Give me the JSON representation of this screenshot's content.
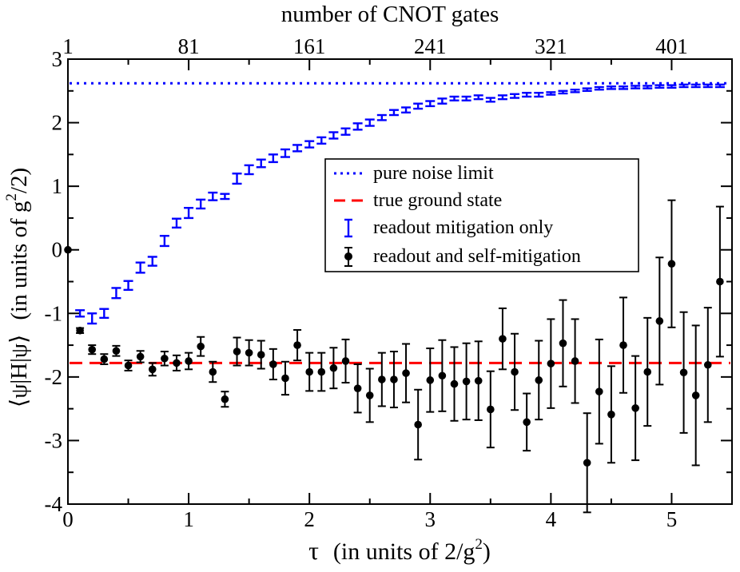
{
  "chart_data": {
    "type": "scatter",
    "title": "",
    "xlabel": "τ   (in units of 2/g²)",
    "xlabel_parts": {
      "tau": "τ",
      "prefix": "(in units of 2/g",
      "sup": "2",
      "suffix": ")"
    },
    "ylabel": "⟨ψ|H|ψ⟩   (in units of g²/2)",
    "ylabel_parts": {
      "bra": "⟨ψ|H|ψ⟩",
      "prefix": "(in units of g",
      "sup": "2",
      "suffix": "/2)"
    },
    "top_axis_label": "number of CNOT gates",
    "xlim": [
      0,
      5.5
    ],
    "ylim": [
      -4,
      3
    ],
    "x_ticks": [
      0,
      1,
      2,
      3,
      4,
      5
    ],
    "y_ticks": [
      -4,
      -3,
      -2,
      -1,
      0,
      1,
      2,
      3
    ],
    "top_ticks": [
      {
        "label": "1",
        "x": 0
      },
      {
        "label": "81",
        "x": 1
      },
      {
        "label": "161",
        "x": 2
      },
      {
        "label": "241",
        "x": 3
      },
      {
        "label": "321",
        "x": 4
      },
      {
        "label": "401",
        "x": 5
      }
    ],
    "legend_position": "center-right",
    "legend": [
      {
        "label": "pure noise limit",
        "style": "dotted-line",
        "color": "#0000ff"
      },
      {
        "label": "true ground state",
        "style": "dashed-line",
        "color": "#ff0000"
      },
      {
        "label": "readout mitigation only",
        "style": "errorbar",
        "color": "#0000ff"
      },
      {
        "label": "readout and self-mitigation",
        "style": "point-errorbar",
        "color": "#000000"
      }
    ],
    "reference_lines": [
      {
        "name": "pure noise limit",
        "y": 2.62,
        "color": "#0000ff",
        "style": "dotted"
      },
      {
        "name": "true ground state",
        "y": -1.78,
        "color": "#ff0000",
        "style": "dashed"
      }
    ],
    "series": [
      {
        "name": "readout mitigation only",
        "color": "#0000ff",
        "marker": "errorbar",
        "x": [
          0.1,
          0.2,
          0.3,
          0.4,
          0.5,
          0.6,
          0.7,
          0.8,
          0.9,
          1.0,
          1.1,
          1.2,
          1.3,
          1.4,
          1.5,
          1.6,
          1.7,
          1.8,
          1.9,
          2.0,
          2.1,
          2.2,
          2.3,
          2.4,
          2.5,
          2.6,
          2.7,
          2.8,
          2.9,
          3.0,
          3.1,
          3.2,
          3.3,
          3.4,
          3.5,
          3.6,
          3.7,
          3.8,
          3.9,
          4.0,
          4.1,
          4.2,
          4.3,
          4.4,
          4.5,
          4.6,
          4.7,
          4.8,
          4.9,
          5.0,
          5.1,
          5.2,
          5.3,
          5.4
        ],
        "y": [
          -1.0,
          -1.08,
          -1.0,
          -0.68,
          -0.56,
          -0.28,
          -0.18,
          0.14,
          0.42,
          0.58,
          0.72,
          0.84,
          0.84,
          1.12,
          1.26,
          1.36,
          1.44,
          1.52,
          1.6,
          1.66,
          1.72,
          1.8,
          1.86,
          1.94,
          2.0,
          2.08,
          2.16,
          2.2,
          2.26,
          2.3,
          2.34,
          2.38,
          2.38,
          2.4,
          2.36,
          2.4,
          2.42,
          2.44,
          2.44,
          2.46,
          2.48,
          2.5,
          2.52,
          2.54,
          2.55,
          2.55,
          2.56,
          2.56,
          2.57,
          2.57,
          2.58,
          2.58,
          2.58,
          2.58
        ],
        "err": [
          0.05,
          0.08,
          0.07,
          0.08,
          0.07,
          0.08,
          0.07,
          0.08,
          0.07,
          0.08,
          0.07,
          0.06,
          0.04,
          0.08,
          0.07,
          0.06,
          0.06,
          0.06,
          0.05,
          0.05,
          0.05,
          0.05,
          0.05,
          0.05,
          0.05,
          0.04,
          0.04,
          0.04,
          0.04,
          0.04,
          0.04,
          0.03,
          0.03,
          0.03,
          0.03,
          0.03,
          0.03,
          0.03,
          0.03,
          0.02,
          0.02,
          0.02,
          0.02,
          0.02,
          0.02,
          0.02,
          0.02,
          0.02,
          0.02,
          0.02,
          0.02,
          0.02,
          0.02,
          0.02
        ]
      },
      {
        "name": "readout and self-mitigation",
        "color": "#000000",
        "marker": "circle",
        "x": [
          0.0,
          0.1,
          0.2,
          0.3,
          0.4,
          0.5,
          0.6,
          0.7,
          0.8,
          0.9,
          1.0,
          1.1,
          1.2,
          1.3,
          1.4,
          1.5,
          1.6,
          1.7,
          1.8,
          1.9,
          2.0,
          2.1,
          2.2,
          2.3,
          2.4,
          2.5,
          2.6,
          2.7,
          2.8,
          2.9,
          3.0,
          3.1,
          3.2,
          3.3,
          3.4,
          3.5,
          3.6,
          3.7,
          3.8,
          3.9,
          4.0,
          4.1,
          4.2,
          4.3,
          4.4,
          4.5,
          4.6,
          4.7,
          4.8,
          4.9,
          5.0,
          5.1,
          5.2,
          5.3,
          5.4
        ],
        "y": [
          0.0,
          -1.27,
          -1.57,
          -1.72,
          -1.59,
          -1.82,
          -1.68,
          -1.88,
          -1.71,
          -1.78,
          -1.75,
          -1.52,
          -1.92,
          -2.35,
          -1.6,
          -1.62,
          -1.65,
          -1.8,
          -2.02,
          -1.5,
          -1.92,
          -1.92,
          -1.86,
          -1.75,
          -2.18,
          -2.29,
          -2.04,
          -2.04,
          -1.94,
          -2.75,
          -2.05,
          -1.98,
          -2.11,
          -2.07,
          -2.06,
          -2.51,
          -1.4,
          -1.92,
          -2.71,
          -2.05,
          -1.79,
          -1.47,
          -1.75,
          -3.35,
          -2.23,
          -2.59,
          -1.5,
          -2.49,
          -1.92,
          -1.12,
          -0.22,
          -1.93,
          -2.29,
          -1.81,
          -0.5
        ],
        "err": [
          0.0,
          0.04,
          0.07,
          0.08,
          0.08,
          0.08,
          0.09,
          0.1,
          0.11,
          0.12,
          0.13,
          0.15,
          0.16,
          0.12,
          0.22,
          0.2,
          0.22,
          0.24,
          0.26,
          0.24,
          0.3,
          0.3,
          0.32,
          0.34,
          0.38,
          0.42,
          0.42,
          0.44,
          0.46,
          0.55,
          0.5,
          0.56,
          0.58,
          0.6,
          0.62,
          0.6,
          0.48,
          0.6,
          0.45,
          0.62,
          0.7,
          0.68,
          0.66,
          0.78,
          0.82,
          0.76,
          0.75,
          0.82,
          0.85,
          1.0,
          1.0,
          0.95,
          1.1,
          0.9,
          1.18
        ]
      }
    ]
  }
}
